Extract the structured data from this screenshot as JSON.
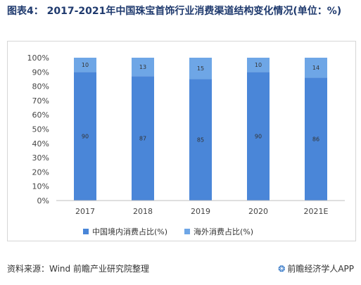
{
  "title": "图表4： 2017-2021年中国珠宝首饰行业消费渠道结构变化情况(单位：%)",
  "source": "资料来源：Wind 前瞻产业研究院整理",
  "brand": "前瞻经济学人APP",
  "colors": {
    "domestic": "#4a86d8",
    "overseas": "#6ea6e6"
  },
  "chart_data": {
    "type": "bar",
    "stacked": true,
    "categories": [
      "2017",
      "2018",
      "2019",
      "2020",
      "2021E"
    ],
    "series": [
      {
        "name": "中国境内消费占比(%)",
        "values": [
          90,
          87,
          85,
          90,
          86
        ]
      },
      {
        "name": "海外消费占比(%)",
        "values": [
          10,
          13,
          15,
          10,
          14
        ]
      }
    ],
    "yticks": [
      "0%",
      "10%",
      "20%",
      "30%",
      "40%",
      "50%",
      "60%",
      "70%",
      "80%",
      "90%",
      "100%"
    ],
    "ylim": [
      0,
      100
    ],
    "legend_position": "bottom"
  }
}
